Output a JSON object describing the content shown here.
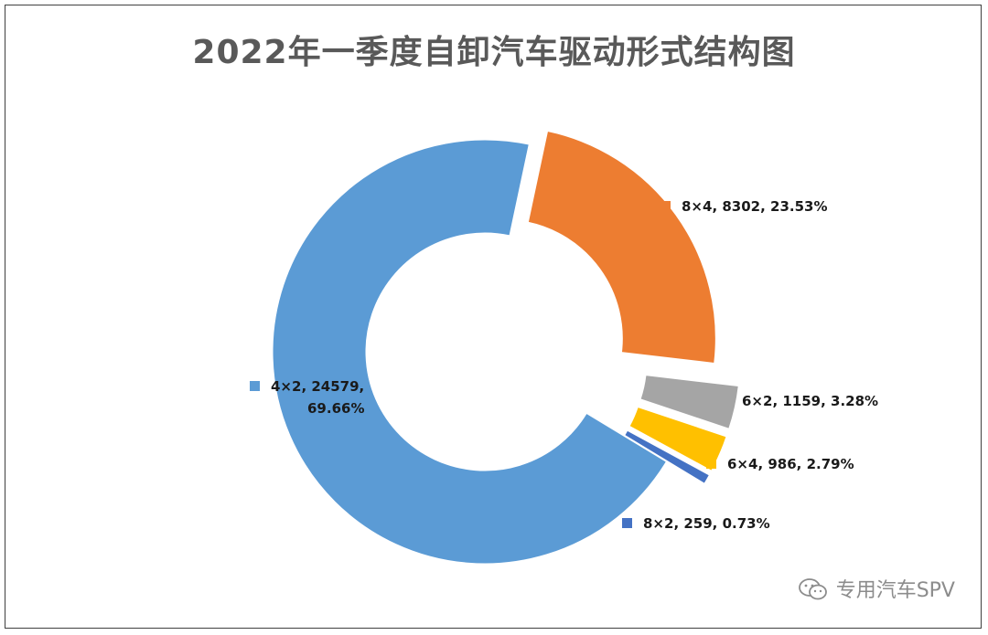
{
  "chart_data": {
    "type": "pie",
    "title": "2022年一季度自卸汽车驱动形式结构图",
    "slices": [
      {
        "label": "8×4",
        "value": 8302,
        "percent": "23.53%",
        "color": "#ED7D31",
        "text": "8×4, 8302, 23.53%"
      },
      {
        "label": "6×2",
        "value": 1159,
        "percent": "3.28%",
        "color": "#A5A5A5",
        "text": "6×2, 1159, 3.28%"
      },
      {
        "label": "6×4",
        "value": 986,
        "percent": "2.79%",
        "color": "#FFC000",
        "text": "6×4, 986, 2.79%"
      },
      {
        "label": "8×2",
        "value": 259,
        "percent": "0.73%",
        "color": "#4472C4",
        "text": "8×2, 259, 0.73%"
      },
      {
        "label": "4×2",
        "value": 24579,
        "percent": "69.66%",
        "color": "#5B9BD5",
        "text_line1": "4×2, 24579,",
        "text_line2": "69.66%"
      }
    ],
    "legend": "none",
    "label_style": "category, value, percent beside each slice"
  },
  "watermark": {
    "text": "专用汽车SPV",
    "icon": "wechat-icon"
  }
}
